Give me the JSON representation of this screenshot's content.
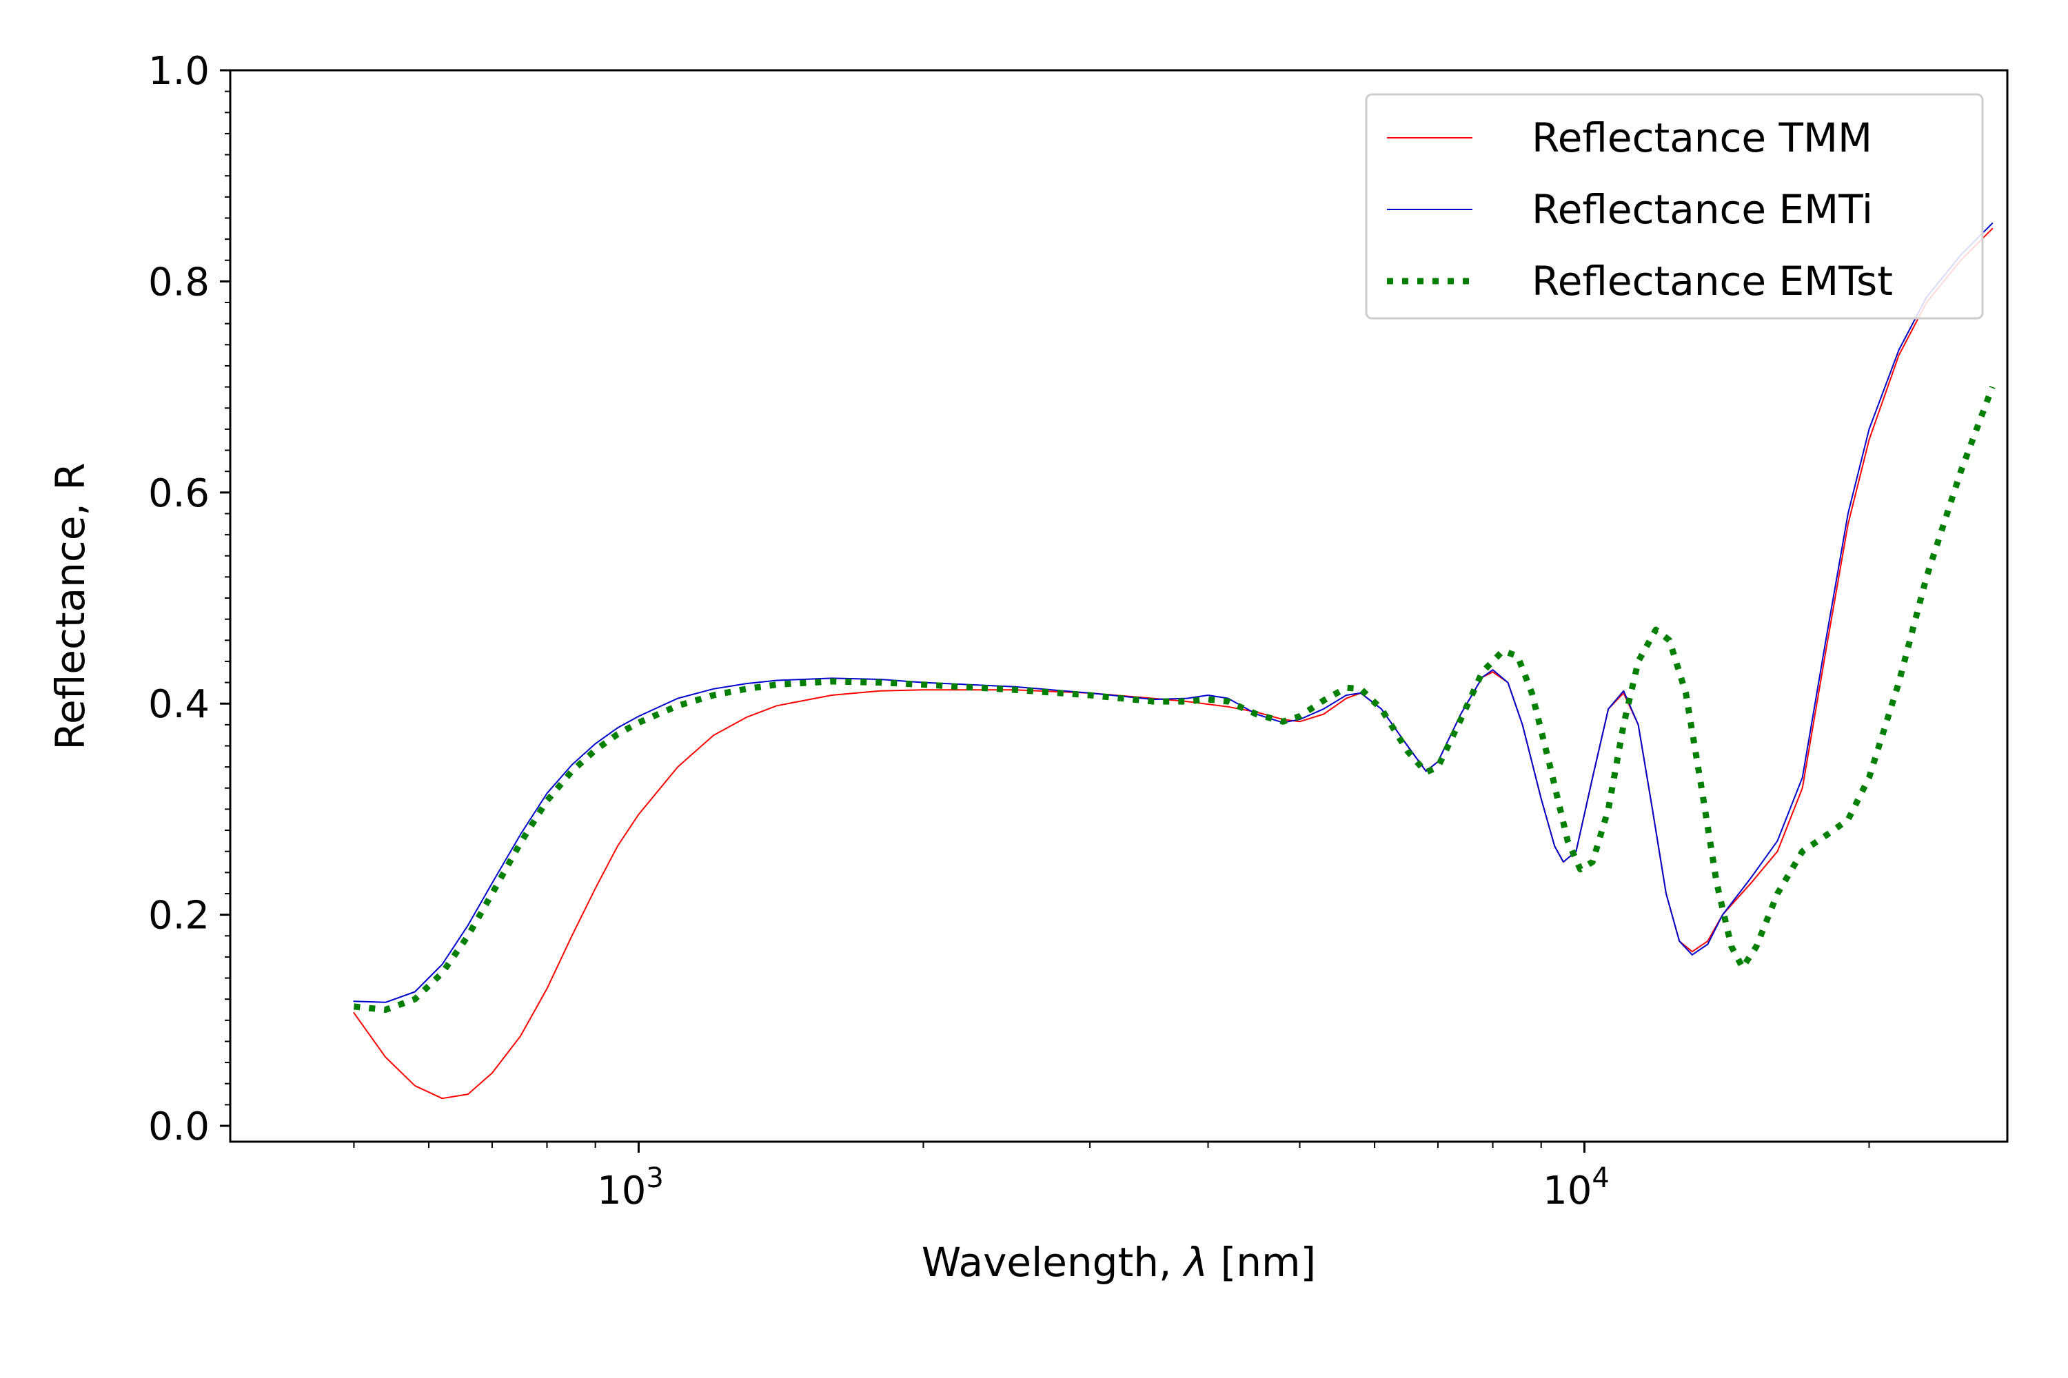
{
  "chart_data": {
    "type": "line",
    "title": "",
    "xlabel_pre": "Wavelength, ",
    "xlabel_symbol": "λ",
    "xlabel_post": " [nm]",
    "ylabel": "Reflectance, R",
    "xscale": "log",
    "xlim": [
      370,
      28000
    ],
    "ylim": [
      -0.015,
      1.0
    ],
    "x_major_ticks": [
      {
        "value": 1000,
        "base": "10",
        "exp": "3"
      },
      {
        "value": 10000,
        "base": "10",
        "exp": "4"
      }
    ],
    "x_minor_ticks": [
      500,
      600,
      700,
      800,
      900,
      2000,
      3000,
      4000,
      5000,
      6000,
      7000,
      8000,
      9000,
      20000
    ],
    "y_ticks": [
      {
        "value": 0.0,
        "label": "0.0"
      },
      {
        "value": 0.2,
        "label": "0.2"
      },
      {
        "value": 0.4,
        "label": "0.4"
      },
      {
        "value": 0.6,
        "label": "0.6"
      },
      {
        "value": 0.8,
        "label": "0.8"
      },
      {
        "value": 1.0,
        "label": "1.0"
      }
    ],
    "y_minor_step": 0.02,
    "grid": false,
    "legend_position": "top-right",
    "series": [
      {
        "name": "Reflectance TMM",
        "color": "#ff0000",
        "style": "solid",
        "points": [
          [
            500,
            0.107
          ],
          [
            540,
            0.065
          ],
          [
            580,
            0.038
          ],
          [
            620,
            0.026
          ],
          [
            660,
            0.03
          ],
          [
            700,
            0.05
          ],
          [
            750,
            0.085
          ],
          [
            800,
            0.13
          ],
          [
            850,
            0.18
          ],
          [
            900,
            0.225
          ],
          [
            950,
            0.265
          ],
          [
            1000,
            0.295
          ],
          [
            1100,
            0.34
          ],
          [
            1200,
            0.37
          ],
          [
            1300,
            0.387
          ],
          [
            1400,
            0.398
          ],
          [
            1600,
            0.408
          ],
          [
            1800,
            0.412
          ],
          [
            2000,
            0.413
          ],
          [
            2500,
            0.413
          ],
          [
            3000,
            0.41
          ],
          [
            3500,
            0.405
          ],
          [
            3800,
            0.402
          ],
          [
            4200,
            0.397
          ],
          [
            4500,
            0.392
          ],
          [
            4800,
            0.385
          ],
          [
            5000,
            0.383
          ],
          [
            5300,
            0.39
          ],
          [
            5600,
            0.405
          ],
          [
            5800,
            0.41
          ],
          [
            6100,
            0.395
          ],
          [
            6500,
            0.36
          ],
          [
            6800,
            0.336
          ],
          [
            7000,
            0.345
          ],
          [
            7400,
            0.39
          ],
          [
            7800,
            0.425
          ],
          [
            8000,
            0.43
          ],
          [
            8300,
            0.42
          ],
          [
            8600,
            0.38
          ],
          [
            9000,
            0.31
          ],
          [
            9300,
            0.265
          ],
          [
            9500,
            0.25
          ],
          [
            9800,
            0.26
          ],
          [
            10200,
            0.33
          ],
          [
            10600,
            0.395
          ],
          [
            11000,
            0.41
          ],
          [
            11400,
            0.38
          ],
          [
            11800,
            0.3
          ],
          [
            12200,
            0.22
          ],
          [
            12600,
            0.175
          ],
          [
            13000,
            0.165
          ],
          [
            13500,
            0.175
          ],
          [
            14000,
            0.2
          ],
          [
            15000,
            0.23
          ],
          [
            16000,
            0.26
          ],
          [
            17000,
            0.32
          ],
          [
            18000,
            0.45
          ],
          [
            19000,
            0.57
          ],
          [
            20000,
            0.65
          ],
          [
            21500,
            0.73
          ],
          [
            23000,
            0.78
          ],
          [
            25000,
            0.82
          ],
          [
            27000,
            0.85
          ]
        ]
      },
      {
        "name": "Reflectance EMTi",
        "color": "#0000cc",
        "style": "solid",
        "points": [
          [
            500,
            0.118
          ],
          [
            540,
            0.117
          ],
          [
            580,
            0.127
          ],
          [
            620,
            0.153
          ],
          [
            660,
            0.19
          ],
          [
            700,
            0.23
          ],
          [
            750,
            0.276
          ],
          [
            800,
            0.315
          ],
          [
            850,
            0.342
          ],
          [
            900,
            0.362
          ],
          [
            950,
            0.377
          ],
          [
            1000,
            0.388
          ],
          [
            1100,
            0.405
          ],
          [
            1200,
            0.414
          ],
          [
            1300,
            0.419
          ],
          [
            1400,
            0.422
          ],
          [
            1600,
            0.424
          ],
          [
            1800,
            0.423
          ],
          [
            2000,
            0.42
          ],
          [
            2500,
            0.416
          ],
          [
            3000,
            0.41
          ],
          [
            3500,
            0.404
          ],
          [
            3800,
            0.405
          ],
          [
            4000,
            0.408
          ],
          [
            4200,
            0.405
          ],
          [
            4500,
            0.39
          ],
          [
            4800,
            0.382
          ],
          [
            5000,
            0.385
          ],
          [
            5300,
            0.395
          ],
          [
            5600,
            0.408
          ],
          [
            5800,
            0.41
          ],
          [
            6100,
            0.395
          ],
          [
            6500,
            0.36
          ],
          [
            6800,
            0.336
          ],
          [
            7000,
            0.345
          ],
          [
            7400,
            0.39
          ],
          [
            7800,
            0.425
          ],
          [
            8000,
            0.432
          ],
          [
            8300,
            0.42
          ],
          [
            8600,
            0.38
          ],
          [
            9000,
            0.31
          ],
          [
            9300,
            0.265
          ],
          [
            9500,
            0.25
          ],
          [
            9800,
            0.26
          ],
          [
            10200,
            0.33
          ],
          [
            10600,
            0.395
          ],
          [
            11000,
            0.412
          ],
          [
            11400,
            0.38
          ],
          [
            11800,
            0.3
          ],
          [
            12200,
            0.22
          ],
          [
            12600,
            0.175
          ],
          [
            13000,
            0.162
          ],
          [
            13500,
            0.172
          ],
          [
            14000,
            0.2
          ],
          [
            15000,
            0.235
          ],
          [
            16000,
            0.27
          ],
          [
            17000,
            0.33
          ],
          [
            18000,
            0.46
          ],
          [
            19000,
            0.58
          ],
          [
            20000,
            0.66
          ],
          [
            21500,
            0.735
          ],
          [
            23000,
            0.785
          ],
          [
            25000,
            0.825
          ],
          [
            27000,
            0.855
          ]
        ]
      },
      {
        "name": "Reflectance EMTst",
        "color": "#007f00",
        "style": "dotted",
        "points": [
          [
            500,
            0.113
          ],
          [
            540,
            0.11
          ],
          [
            580,
            0.12
          ],
          [
            620,
            0.145
          ],
          [
            660,
            0.18
          ],
          [
            700,
            0.22
          ],
          [
            750,
            0.268
          ],
          [
            800,
            0.308
          ],
          [
            850,
            0.336
          ],
          [
            900,
            0.356
          ],
          [
            950,
            0.371
          ],
          [
            1000,
            0.382
          ],
          [
            1100,
            0.398
          ],
          [
            1200,
            0.408
          ],
          [
            1300,
            0.414
          ],
          [
            1400,
            0.418
          ],
          [
            1600,
            0.421
          ],
          [
            1800,
            0.42
          ],
          [
            2000,
            0.418
          ],
          [
            2500,
            0.413
          ],
          [
            3000,
            0.408
          ],
          [
            3500,
            0.402
          ],
          [
            3800,
            0.402
          ],
          [
            4000,
            0.404
          ],
          [
            4200,
            0.402
          ],
          [
            4500,
            0.39
          ],
          [
            4800,
            0.383
          ],
          [
            5000,
            0.388
          ],
          [
            5300,
            0.403
          ],
          [
            5600,
            0.415
          ],
          [
            5800,
            0.414
          ],
          [
            6100,
            0.395
          ],
          [
            6500,
            0.355
          ],
          [
            6800,
            0.335
          ],
          [
            7000,
            0.34
          ],
          [
            7400,
            0.385
          ],
          [
            7800,
            0.43
          ],
          [
            8200,
            0.45
          ],
          [
            8500,
            0.445
          ],
          [
            8800,
            0.41
          ],
          [
            9200,
            0.34
          ],
          [
            9600,
            0.27
          ],
          [
            9900,
            0.243
          ],
          [
            10200,
            0.25
          ],
          [
            10600,
            0.3
          ],
          [
            11000,
            0.38
          ],
          [
            11400,
            0.44
          ],
          [
            11900,
            0.47
          ],
          [
            12300,
            0.46
          ],
          [
            12800,
            0.41
          ],
          [
            13300,
            0.32
          ],
          [
            13800,
            0.23
          ],
          [
            14300,
            0.17
          ],
          [
            14700,
            0.15
          ],
          [
            15200,
            0.17
          ],
          [
            16000,
            0.22
          ],
          [
            17000,
            0.26
          ],
          [
            18000,
            0.275
          ],
          [
            19000,
            0.29
          ],
          [
            20000,
            0.33
          ],
          [
            21500,
            0.42
          ],
          [
            23000,
            0.52
          ],
          [
            25000,
            0.62
          ],
          [
            27000,
            0.7
          ]
        ]
      }
    ]
  }
}
